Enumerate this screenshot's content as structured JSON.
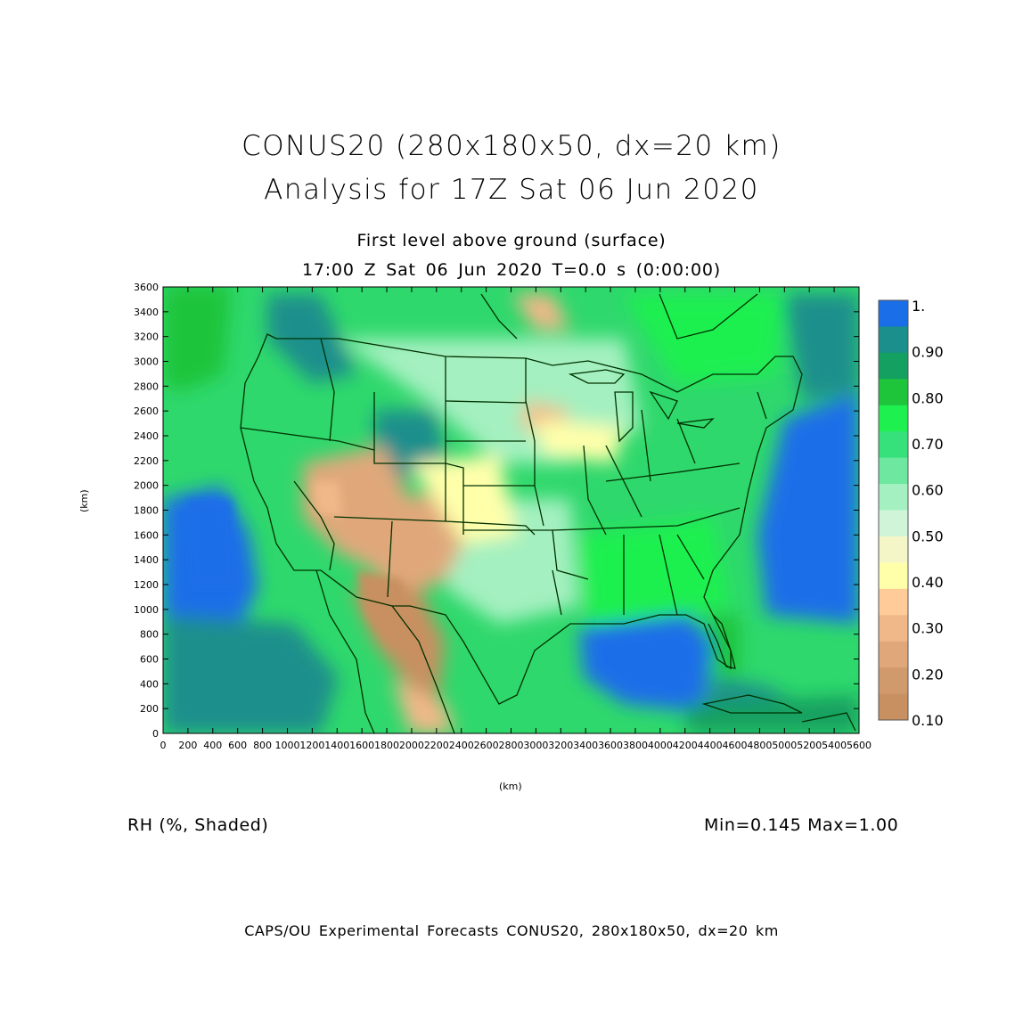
{
  "title_line1": "CONUS20 (280x180x50, dx=20 km)",
  "title_line2": "Analysis for 17Z Sat 06 Jun 2020",
  "subtitle_line1": "First level above ground (surface)",
  "subtitle_line2": "17:00 Z Sat 06 Jun 2020   T=0.0 s (0:00:00)",
  "x_axis": {
    "label": "(km)",
    "ticks": [
      "0",
      "200",
      "400",
      "600",
      "800",
      "1000",
      "1200",
      "1400",
      "1600",
      "1800",
      "2000",
      "2200",
      "2400",
      "2600",
      "2800",
      "3000",
      "3200",
      "3400",
      "3600",
      "3800",
      "4000",
      "4200",
      "4400",
      "4600",
      "4800",
      "5000",
      "5200",
      "5400",
      "5600"
    ],
    "range": [
      0,
      5600
    ]
  },
  "y_axis": {
    "label": "(km)",
    "ticks": [
      "0",
      "200",
      "400",
      "600",
      "800",
      "1000",
      "1200",
      "1400",
      "1600",
      "1800",
      "2000",
      "2200",
      "2400",
      "2600",
      "2800",
      "3000",
      "3200",
      "3400",
      "3600"
    ],
    "range": [
      0,
      3600
    ]
  },
  "colorbar": {
    "labels": [
      "1.",
      "0.90",
      "0.80",
      "0.70",
      "0.60",
      "0.50",
      "0.40",
      "0.30",
      "0.20",
      "0.10"
    ],
    "colors": [
      "#1a6ee8",
      "#1b8f8c",
      "#14a060",
      "#1ec43a",
      "#1ef050",
      "#36e07a",
      "#6ee8a0",
      "#a4f0c0",
      "#d0f4d8",
      "#f4f6c8",
      "#ffffaa",
      "#ffcc99",
      "#f0b888",
      "#e0a87a",
      "#d09a6c",
      "#c89060"
    ]
  },
  "field_label": "RH (%, Shaded)",
  "min_max": "Min=0.145  Max=1.00",
  "credit": "CAPS/OU Experimental Forecasts  CONUS20, 280x180x50, dx=20 km",
  "regions": [
    {
      "name": "pacific-west-dry-ocean",
      "level": 1.0
    },
    {
      "name": "atlantic-ocean",
      "level": 1.0
    },
    {
      "name": "gulf-of-mexico",
      "level": 1.0
    },
    {
      "name": "southwest-desert",
      "level": 0.2
    },
    {
      "name": "four-corners",
      "level": 0.3
    },
    {
      "name": "great-plains",
      "level": 0.5
    },
    {
      "name": "east-us",
      "level": 0.65
    }
  ]
}
